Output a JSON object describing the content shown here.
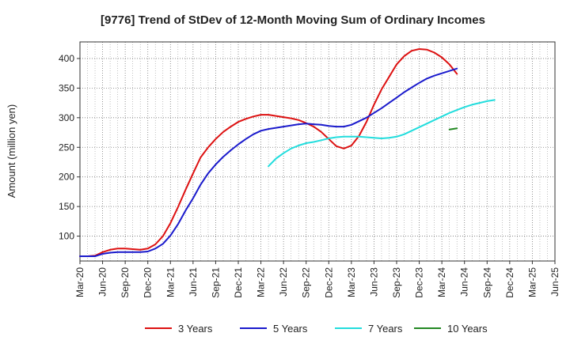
{
  "chart_data": {
    "type": "line",
    "title": "[9776]  Trend of StDev of 12-Month Moving Sum of Ordinary Incomes",
    "xlabel": "",
    "ylabel": "Amount (million yen)",
    "x_ticks": [
      "Mar-20",
      "Jun-20",
      "Sep-20",
      "Dec-20",
      "Mar-21",
      "Jun-21",
      "Sep-21",
      "Dec-21",
      "Mar-22",
      "Jun-22",
      "Sep-22",
      "Dec-22",
      "Mar-23",
      "Jun-23",
      "Sep-23",
      "Dec-23",
      "Mar-24",
      "Jun-24",
      "Sep-24",
      "Dec-24",
      "Mar-25",
      "Jun-25"
    ],
    "y_ticks": [
      100,
      150,
      200,
      250,
      300,
      350,
      400
    ],
    "ylim": [
      58,
      428
    ],
    "xlim": [
      0,
      21
    ],
    "grid": true,
    "legend_position": "bottom",
    "series": [
      {
        "name": "3 Years",
        "color": "#dd1111",
        "x_start": 0,
        "values": [
          66,
          66,
          67,
          73,
          77,
          79,
          79,
          78,
          77,
          79,
          86,
          100,
          122,
          149,
          178,
          206,
          233,
          250,
          264,
          276,
          285,
          293,
          298,
          302,
          305,
          305,
          303,
          301,
          299,
          296,
          291,
          285,
          276,
          264,
          252,
          248,
          253,
          269,
          293,
          322,
          348,
          369,
          390,
          404,
          413,
          416,
          415,
          410,
          402,
          390,
          374
        ]
      },
      {
        "name": "5 Years",
        "color": "#1a1acc",
        "x_start": 0,
        "values": [
          66,
          66,
          66,
          70,
          72,
          73,
          73,
          73,
          73,
          74,
          79,
          87,
          101,
          120,
          143,
          164,
          187,
          206,
          221,
          234,
          245,
          255,
          264,
          272,
          278,
          281,
          283,
          285,
          287,
          289,
          290,
          289,
          288,
          286,
          285,
          285,
          288,
          294,
          300,
          308,
          316,
          325,
          334,
          343,
          351,
          359,
          366,
          371,
          375,
          379,
          383
        ]
      },
      {
        "name": "7 Years",
        "color": "#22dddd",
        "x_start": 25,
        "values": [
          218,
          231,
          240,
          248,
          253,
          257,
          259,
          262,
          265,
          267,
          268,
          268,
          268,
          267,
          266,
          265,
          266,
          268,
          272,
          278,
          284,
          290,
          296,
          302,
          308,
          313,
          318,
          322,
          325,
          328,
          330
        ]
      },
      {
        "name": "10 Years",
        "color": "#228822",
        "x_start": 49,
        "values": [
          280,
          282
        ]
      }
    ]
  }
}
